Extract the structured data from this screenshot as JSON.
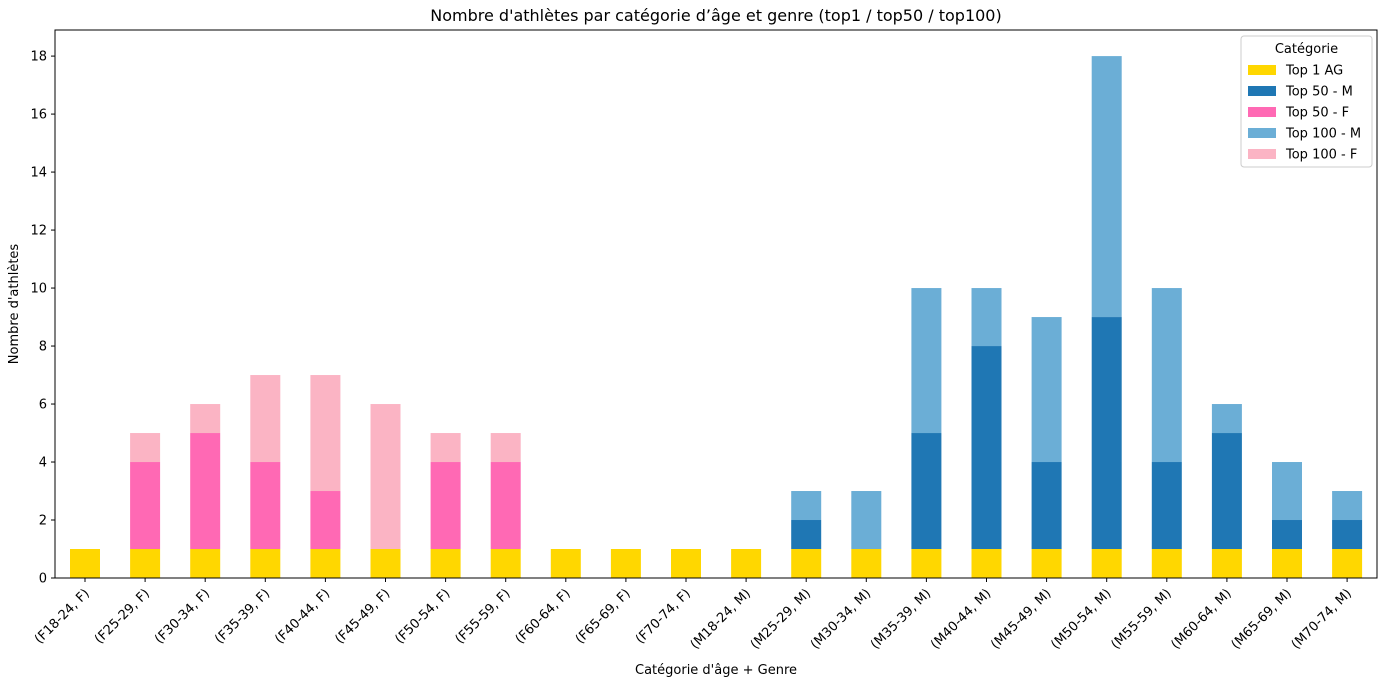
{
  "chart_data": {
    "type": "bar",
    "stacked": true,
    "title": "Nombre d'athlètes par catégorie d’âge et genre (top1 / top50 / top100)",
    "xlabel": "Catégorie d'âge + Genre",
    "ylabel": "Nombre d'athlètes",
    "ylim": [
      0,
      18.9
    ],
    "yticks": [
      0,
      2,
      4,
      6,
      8,
      10,
      12,
      14,
      16,
      18
    ],
    "grid": false,
    "legend": {
      "title": "Catégorie",
      "placement": "top-right"
    },
    "categories": [
      "(F18-24, F)",
      "(F25-29, F)",
      "(F30-34, F)",
      "(F35-39, F)",
      "(F40-44, F)",
      "(F45-49, F)",
      "(F50-54, F)",
      "(F55-59, F)",
      "(F60-64, F)",
      "(F65-69, F)",
      "(F70-74, F)",
      "(M18-24, M)",
      "(M25-29, M)",
      "(M30-34, M)",
      "(M35-39, M)",
      "(M40-44, M)",
      "(M45-49, M)",
      "(M50-54, M)",
      "(M55-59, M)",
      "(M60-64, M)",
      "(M65-69, M)",
      "(M70-74, M)"
    ],
    "series": [
      {
        "name": "Top 1 AG",
        "color": "#FFD700",
        "values": [
          1,
          1,
          1,
          1,
          1,
          1,
          1,
          1,
          1,
          1,
          1,
          1,
          1,
          1,
          1,
          1,
          1,
          1,
          1,
          1,
          1,
          1
        ]
      },
      {
        "name": "Top 50 - M",
        "color": "#1F77B4",
        "values": [
          0,
          0,
          0,
          0,
          0,
          0,
          0,
          0,
          0,
          0,
          0,
          0,
          1,
          0,
          4,
          7,
          3,
          8,
          3,
          4,
          1,
          1
        ]
      },
      {
        "name": "Top 50 - F",
        "color": "#FF69B4",
        "values": [
          0,
          3,
          4,
          3,
          2,
          0,
          3,
          3,
          0,
          0,
          0,
          0,
          0,
          0,
          0,
          0,
          0,
          0,
          0,
          0,
          0,
          0
        ]
      },
      {
        "name": "Top 100 - M",
        "color": "#6BAED6",
        "values": [
          0,
          0,
          0,
          0,
          0,
          0,
          0,
          0,
          0,
          0,
          0,
          0,
          1,
          2,
          5,
          2,
          5,
          9,
          6,
          1,
          2,
          1
        ]
      },
      {
        "name": "Top 100 - F",
        "color": "#FBB4C4",
        "values": [
          0,
          1,
          1,
          3,
          4,
          5,
          1,
          1,
          0,
          0,
          0,
          0,
          0,
          0,
          0,
          0,
          0,
          0,
          0,
          0,
          0,
          0
        ]
      }
    ]
  }
}
